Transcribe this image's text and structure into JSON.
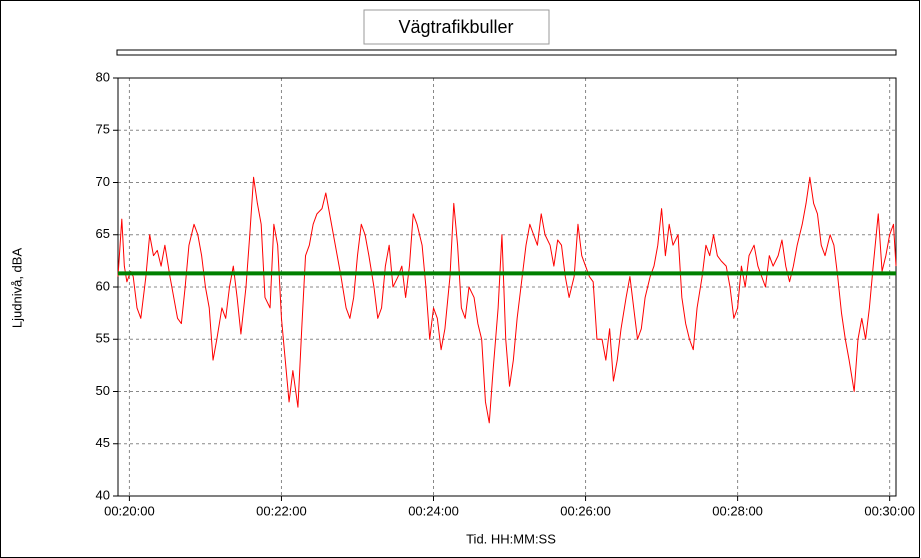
{
  "chart_data": {
    "type": "line",
    "title": "Vägtrafikbuller",
    "xlabel": "Tid. HH:MM:SS",
    "ylabel": "Ljudnivå, dBA",
    "xlim": [
      1191,
      1805
    ],
    "ylim": [
      40,
      80
    ],
    "xticks": [
      {
        "value": 1200,
        "label": "00:20:00"
      },
      {
        "value": 1320,
        "label": "00:22:00"
      },
      {
        "value": 1440,
        "label": "00:24:00"
      },
      {
        "value": 1560,
        "label": "00:26:00"
      },
      {
        "value": 1680,
        "label": "00:28:00"
      },
      {
        "value": 1800,
        "label": "00:30:00"
      }
    ],
    "yticks": [
      40,
      45,
      50,
      55,
      60,
      65,
      70,
      75,
      80
    ],
    "grid": true,
    "series": [
      {
        "color": "#ff0000",
        "x": [
          1191,
          1194,
          1196,
          1198,
          1201,
          1203,
          1206,
          1209,
          1213,
          1216,
          1219,
          1222,
          1225,
          1228,
          1232,
          1235,
          1238,
          1241,
          1244,
          1247,
          1251,
          1254,
          1257,
          1260,
          1263,
          1266,
          1269,
          1273,
          1276,
          1279,
          1282,
          1285,
          1288,
          1292,
          1295,
          1298,
          1301,
          1304,
          1307,
          1311,
          1314,
          1317,
          1320,
          1323,
          1326,
          1329,
          1333,
          1336,
          1339,
          1342,
          1345,
          1348,
          1352,
          1355,
          1358,
          1361,
          1364,
          1367,
          1371,
          1374,
          1377,
          1380,
          1383,
          1386,
          1389,
          1393,
          1396,
          1399,
          1402,
          1405,
          1408,
          1412,
          1415,
          1418,
          1421,
          1424,
          1427,
          1431,
          1434,
          1437,
          1440,
          1443,
          1446,
          1449,
          1453,
          1456,
          1459,
          1462,
          1465,
          1468,
          1472,
          1475,
          1478,
          1481,
          1484,
          1487,
          1491,
          1494,
          1497,
          1500,
          1503,
          1506,
          1509,
          1513,
          1516,
          1519,
          1522,
          1525,
          1528,
          1532,
          1535,
          1538,
          1541,
          1544,
          1547,
          1551,
          1554,
          1557,
          1560,
          1563,
          1566,
          1569,
          1573,
          1576,
          1579,
          1582,
          1585,
          1588,
          1592,
          1595,
          1598,
          1601,
          1604,
          1607,
          1611,
          1614,
          1617,
          1620,
          1623,
          1626,
          1629,
          1633,
          1636,
          1639,
          1642,
          1645,
          1648,
          1652,
          1655,
          1658,
          1661,
          1664,
          1667,
          1671,
          1674,
          1677,
          1680,
          1683,
          1686,
          1689,
          1693,
          1696,
          1699,
          1702,
          1705,
          1708,
          1712,
          1715,
          1718,
          1721,
          1724,
          1727,
          1731,
          1734,
          1737,
          1740,
          1743,
          1746,
          1749,
          1753,
          1756,
          1759,
          1762,
          1765,
          1768,
          1772,
          1775,
          1778,
          1781,
          1784,
          1787,
          1791,
          1794,
          1797,
          1800,
          1803,
          1805
        ],
        "values": [
          61,
          66.5,
          62,
          60.5,
          61.5,
          61,
          58,
          57,
          61,
          65,
          63,
          63.5,
          62,
          64,
          61,
          59,
          57,
          56.5,
          60,
          64,
          66,
          65,
          63,
          60,
          58,
          53,
          55,
          58,
          57,
          60,
          62,
          59,
          55.5,
          60,
          65,
          70.5,
          68,
          66,
          59,
          58,
          66,
          64,
          57,
          53,
          49,
          52,
          48.5,
          56,
          63,
          64,
          66,
          67,
          67.5,
          69,
          67,
          65,
          63,
          61,
          58,
          57,
          59,
          63,
          66,
          65,
          63,
          60,
          57,
          58,
          62,
          64,
          60,
          61,
          62,
          59,
          62,
          67,
          66,
          64,
          60,
          55,
          58,
          57,
          54,
          56,
          61,
          68,
          64,
          58,
          57,
          60,
          59,
          56.5,
          55,
          49,
          47,
          52,
          58,
          65,
          55,
          50.5,
          53,
          57,
          60,
          64,
          66,
          65,
          64,
          67,
          65,
          64,
          62,
          64.5,
          64,
          61,
          59,
          61,
          66,
          63,
          62,
          61,
          60.5,
          55,
          55,
          53,
          56,
          51,
          53,
          56,
          59,
          61,
          58,
          55,
          56,
          59,
          61,
          62,
          64,
          67.5,
          63,
          66,
          64,
          65,
          59,
          56.5,
          55,
          54,
          58,
          61,
          64,
          63,
          65,
          63,
          62.5,
          62,
          60,
          57,
          58,
          62,
          60,
          63,
          64,
          62,
          61,
          60,
          63,
          62,
          63,
          64.5,
          62,
          60.5,
          62,
          64,
          66,
          68,
          70.5,
          68,
          67,
          64,
          63,
          65,
          64,
          61,
          57.5,
          55,
          53,
          50,
          55,
          57,
          55,
          58,
          62,
          67,
          61.5,
          63,
          65,
          66,
          62
        ]
      },
      {
        "color": "#008000",
        "x": [
          1191,
          1805
        ],
        "values": [
          61.3,
          61.3
        ]
      }
    ]
  }
}
